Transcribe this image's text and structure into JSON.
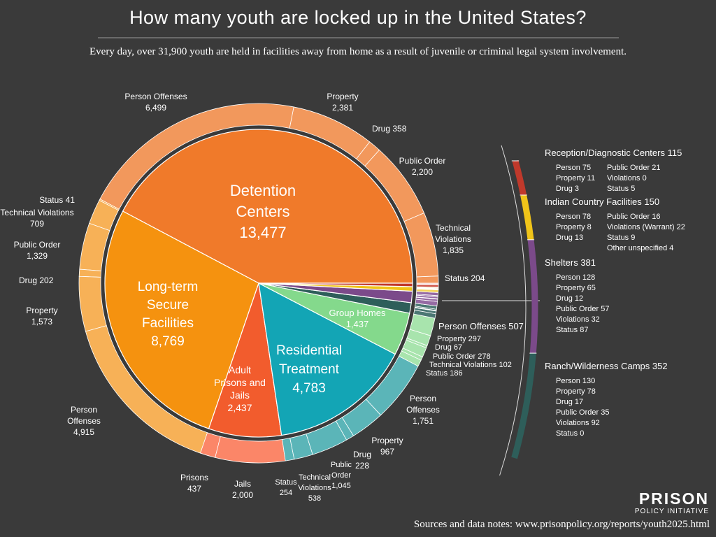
{
  "chart_data": {
    "type": "sunburst",
    "title": "How many youth are locked up in the United States?",
    "subtitle": "Every day, over 31,900 youth are held in facilities away from home as a result of juvenile or criminal legal system involvement.",
    "source": "Sources and data notes: www.prisonpolicy.org/reports/youth2025.html",
    "series": [
      {
        "name": "Detention Centers",
        "value": 13477,
        "value_label": "13,477",
        "color": "#f07a2a",
        "ring_color": "#f2985c",
        "children": [
          {
            "name": "Status",
            "value": 204
          },
          {
            "name": "Technical Violations",
            "value": 1835,
            "value_label": "1,835"
          },
          {
            "name": "Public Order",
            "value": 2200,
            "value_label": "2,200"
          },
          {
            "name": "Drug",
            "value": 358
          },
          {
            "name": "Property",
            "value": 2381,
            "value_label": "2,381"
          },
          {
            "name": "Person Offenses",
            "value": 6499,
            "value_label": "6,499"
          }
        ]
      },
      {
        "name": "Long-term Secure Facilities",
        "value": 8769,
        "value_label": "8,769",
        "color": "#f5920f",
        "ring_color": "#f7b157",
        "children": [
          {
            "name": "Status",
            "value": 41
          },
          {
            "name": "Technical Violations",
            "value": 709
          },
          {
            "name": "Public Order",
            "value": 1329,
            "value_label": "1,329"
          },
          {
            "name": "Drug",
            "value": 202
          },
          {
            "name": "Property",
            "value": 1573,
            "value_label": "1,573"
          },
          {
            "name": "Person Offenses",
            "value": 4915,
            "value_label": "4,915"
          }
        ]
      },
      {
        "name": "Adult Prisons and Jails",
        "value": 2437,
        "value_label": "2,437",
        "color": "#f25c2d",
        "ring_color": "#fb8668",
        "children": [
          {
            "name": "Prisons",
            "value": 437
          },
          {
            "name": "Jails",
            "value": 2000,
            "value_label": "2,000"
          }
        ]
      },
      {
        "name": "Residential Treatment",
        "value": 4783,
        "value_label": "4,783",
        "color": "#13a5b5",
        "ring_color": "#5bb5b8",
        "children": [
          {
            "name": "Status",
            "value": 254
          },
          {
            "name": "Technical Violations",
            "value": 538
          },
          {
            "name": "Public Order",
            "value": 1045,
            "value_label": "1,045"
          },
          {
            "name": "Drug",
            "value": 228
          },
          {
            "name": "Property",
            "value": 967
          },
          {
            "name": "Person Offenses",
            "value": 1751,
            "value_label": "1,751"
          }
        ]
      },
      {
        "name": "Group Homes",
        "value": 1437,
        "value_label": "1,437",
        "color": "#84d98c",
        "ring_color": "#a8e4ad",
        "children": [
          {
            "name": "Status",
            "value": 186
          },
          {
            "name": "Technical Violations",
            "value": 102
          },
          {
            "name": "Public Order",
            "value": 278
          },
          {
            "name": "Drug",
            "value": 67
          },
          {
            "name": "Property",
            "value": 297
          },
          {
            "name": "Person Offenses",
            "value": 507
          }
        ]
      },
      {
        "name": "Reception/Diagnostic Centers",
        "value": 115,
        "color": "#c0392b",
        "ring_color": "#d0584b",
        "children": [
          {
            "name": "Person",
            "value": 75
          },
          {
            "name": "Property",
            "value": 11
          },
          {
            "name": "Drug",
            "value": 3
          },
          {
            "name": "Public Order",
            "value": 21
          },
          {
            "name": "Violations",
            "value": 0
          },
          {
            "name": "Status",
            "value": 5
          }
        ]
      },
      {
        "name": "Indian Country Facilities",
        "value": 150,
        "color": "#f0c419",
        "ring_color": "#f4d35a",
        "children": [
          {
            "name": "Person",
            "value": 78
          },
          {
            "name": "Property",
            "value": 8
          },
          {
            "name": "Drug",
            "value": 13
          },
          {
            "name": "Public Order",
            "value": 16
          },
          {
            "name": "Violations (Warrant)",
            "value": 22
          },
          {
            "name": "Status",
            "value": 9
          },
          {
            "name": "Other unspecified",
            "value": 4
          }
        ]
      },
      {
        "name": "Shelters",
        "value": 381,
        "color": "#7b4a8a",
        "ring_color": "#956aa3",
        "children": [
          {
            "name": "Person",
            "value": 128
          },
          {
            "name": "Property",
            "value": 65
          },
          {
            "name": "Drug",
            "value": 12
          },
          {
            "name": "Public Order",
            "value": 57
          },
          {
            "name": "Violations",
            "value": 32
          },
          {
            "name": "Status",
            "value": 87
          }
        ]
      },
      {
        "name": "Ranch/Wilderness Camps",
        "value": 352,
        "color": "#2e5e5a",
        "ring_color": "#4b7773",
        "children": [
          {
            "name": "Person",
            "value": 130
          },
          {
            "name": "Property",
            "value": 78
          },
          {
            "name": "Drug",
            "value": 17
          },
          {
            "name": "Public Order",
            "value": 35
          },
          {
            "name": "Violations",
            "value": 92
          },
          {
            "name": "Status",
            "value": 0
          }
        ]
      }
    ]
  },
  "logo": [
    "PRISON",
    "POLICY INITIATIVE"
  ]
}
